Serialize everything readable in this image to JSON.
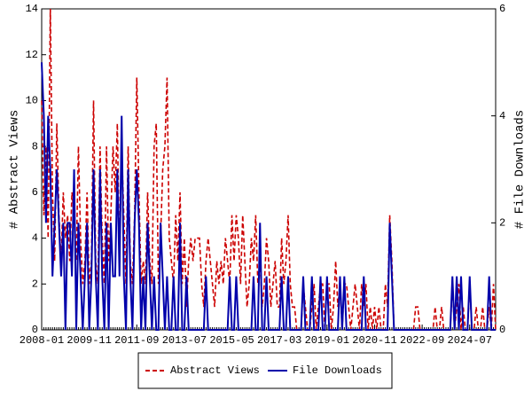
{
  "chart_data": {
    "type": "line",
    "x": [
      "2008-01",
      "2008-02",
      "2008-03",
      "2008-04",
      "2008-05",
      "2008-06",
      "2008-07",
      "2008-08",
      "2008-09",
      "2008-10",
      "2008-11",
      "2008-12",
      "2009-01",
      "2009-02",
      "2009-03",
      "2009-04",
      "2009-05",
      "2009-06",
      "2009-07",
      "2009-08",
      "2009-09",
      "2009-10",
      "2009-11",
      "2009-12",
      "2010-01",
      "2010-02",
      "2010-03",
      "2010-04",
      "2010-05",
      "2010-06",
      "2010-07",
      "2010-08",
      "2010-09",
      "2010-10",
      "2010-11",
      "2010-12",
      "2011-01",
      "2011-02",
      "2011-03",
      "2011-04",
      "2011-05",
      "2011-06",
      "2011-07",
      "2011-08",
      "2011-09",
      "2011-10",
      "2011-11",
      "2011-12",
      "2012-01",
      "2012-02",
      "2012-03",
      "2012-04",
      "2012-05",
      "2012-06",
      "2012-07",
      "2012-08",
      "2012-09",
      "2012-10",
      "2012-11",
      "2012-12",
      "2013-01",
      "2013-02",
      "2013-03",
      "2013-04",
      "2013-05",
      "2013-06",
      "2013-07",
      "2013-08",
      "2013-09",
      "2013-10",
      "2013-11",
      "2013-12",
      "2014-01",
      "2014-02",
      "2014-03",
      "2014-04",
      "2014-05",
      "2014-06",
      "2014-07",
      "2014-08",
      "2014-09",
      "2014-10",
      "2014-11",
      "2014-12",
      "2015-01",
      "2015-02",
      "2015-03",
      "2015-04",
      "2015-05",
      "2015-06",
      "2015-07",
      "2015-08",
      "2015-09",
      "2015-10",
      "2015-11",
      "2015-12",
      "2016-01",
      "2016-02",
      "2016-03",
      "2016-04",
      "2016-05",
      "2016-06",
      "2016-07",
      "2016-08",
      "2016-09",
      "2016-10",
      "2016-11",
      "2016-12",
      "2017-01",
      "2017-02",
      "2017-03",
      "2017-04",
      "2017-05",
      "2017-06",
      "2017-07",
      "2017-08",
      "2017-09",
      "2017-10",
      "2017-11",
      "2017-12",
      "2018-01",
      "2018-02",
      "2018-03",
      "2018-04",
      "2018-05",
      "2018-06",
      "2018-07",
      "2018-08",
      "2018-09",
      "2018-10",
      "2018-11",
      "2018-12",
      "2019-01",
      "2019-02",
      "2019-03",
      "2019-04",
      "2019-05",
      "2019-06",
      "2019-07",
      "2019-08",
      "2019-09",
      "2019-10",
      "2019-11",
      "2019-12",
      "2020-01",
      "2020-02",
      "2020-03",
      "2020-04",
      "2020-05",
      "2020-06",
      "2020-07",
      "2020-08",
      "2020-09",
      "2020-10",
      "2020-11",
      "2020-12",
      "2021-01",
      "2021-02",
      "2021-03",
      "2021-04",
      "2021-05",
      "2021-06",
      "2021-07",
      "2021-08",
      "2021-09",
      "2021-10",
      "2021-11",
      "2021-12",
      "2022-01",
      "2022-02",
      "2022-03",
      "2022-04",
      "2022-05",
      "2022-06",
      "2022-07",
      "2022-08",
      "2022-09",
      "2022-10",
      "2022-11",
      "2022-12",
      "2023-01",
      "2023-02",
      "2023-03",
      "2023-04",
      "2023-05",
      "2023-06",
      "2023-07",
      "2023-08",
      "2023-09",
      "2023-10",
      "2023-11",
      "2023-12",
      "2024-01",
      "2024-02",
      "2024-03",
      "2024-04",
      "2024-05",
      "2024-06",
      "2024-07",
      "2024-08",
      "2024-09",
      "2024-10",
      "2024-11",
      "2024-12",
      "2025-01",
      "2025-02",
      "2025-03",
      "2025-04",
      "2025-05",
      "2025-06",
      "2025-07"
    ],
    "xticks": [
      "2008-01",
      "2009-11",
      "2011-09",
      "2013-07",
      "2015-05",
      "2017-03",
      "2019-01",
      "2020-11",
      "2022-09",
      "2024-07"
    ],
    "ylabel": "# Abstract Views",
    "y2label": "# File Downloads",
    "ylim": [
      0,
      14
    ],
    "yticks": [
      0,
      2,
      4,
      6,
      8,
      10,
      12,
      14
    ],
    "y2lim": [
      0,
      6
    ],
    "y2ticks": [
      0,
      2,
      4,
      6
    ],
    "legend": "bottom",
    "series": [
      {
        "name": "Abstract Views",
        "color": "#cc0000",
        "dash": true,
        "values": [
          10,
          5,
          8,
          4,
          14,
          6,
          3,
          9,
          5,
          3,
          6,
          4,
          5,
          3,
          6,
          5,
          3,
          8,
          4,
          2,
          3,
          6,
          2,
          3,
          10,
          3,
          2,
          8,
          4,
          2,
          8,
          3,
          5,
          8,
          6,
          9,
          3,
          8,
          5,
          2,
          8,
          3,
          2,
          5,
          11,
          6,
          2,
          3,
          2,
          6,
          3,
          2,
          8,
          9,
          2,
          4,
          7,
          8,
          11,
          4,
          3,
          2,
          5,
          3,
          6,
          2,
          4,
          1,
          3,
          4,
          3,
          4,
          4,
          4,
          2,
          1,
          3,
          4,
          3,
          2,
          1,
          3,
          2,
          3,
          2,
          4,
          3,
          2,
          5,
          3,
          5,
          4,
          2,
          5,
          3,
          1,
          2,
          4,
          3,
          5,
          2,
          3,
          1,
          2,
          4,
          3,
          1,
          2,
          3,
          1,
          1,
          4,
          2,
          3,
          5,
          2,
          1,
          1,
          0,
          0,
          0,
          2,
          1,
          0,
          0,
          1,
          2,
          0,
          1,
          2,
          2,
          0,
          2,
          2,
          0,
          1,
          3,
          1,
          2,
          0,
          2,
          2,
          1,
          0,
          1,
          2,
          1,
          0,
          2,
          1,
          2,
          0,
          1,
          0,
          1,
          0,
          1,
          0,
          0,
          2,
          1,
          5,
          3,
          0,
          0,
          0,
          0,
          0,
          0,
          0,
          0,
          0,
          0,
          1,
          1,
          0,
          0,
          0,
          0,
          0,
          0,
          0,
          1,
          0,
          0,
          1,
          0,
          0,
          0,
          0,
          2,
          0,
          1,
          2,
          0,
          1,
          0,
          0,
          2,
          0,
          0,
          1,
          0,
          0,
          1,
          0,
          0,
          1,
          0,
          2,
          0
        ]
      },
      {
        "name": "File Downloads",
        "color": "#0000aa",
        "axis": "y2",
        "values": [
          5,
          4,
          2,
          4,
          3,
          1,
          2,
          3,
          2,
          1,
          2,
          0,
          2,
          2,
          1,
          3,
          0,
          2,
          1,
          0,
          1,
          2,
          0,
          1,
          3,
          1,
          0,
          3,
          1,
          0,
          2,
          0,
          2,
          1,
          1,
          3,
          1,
          4,
          1,
          0,
          3,
          1,
          0,
          2,
          3,
          2,
          0,
          1,
          0,
          2,
          1,
          0,
          1,
          0,
          0,
          2,
          1,
          0,
          1,
          0,
          0,
          1,
          0,
          0,
          2,
          0,
          0,
          1,
          0,
          0,
          0,
          0,
          0,
          0,
          0,
          0,
          1,
          0,
          0,
          0,
          0,
          0,
          0,
          0,
          0,
          0,
          0,
          1,
          0,
          0,
          1,
          0,
          0,
          0,
          0,
          0,
          0,
          0,
          1,
          0,
          0,
          2,
          0,
          0,
          1,
          0,
          0,
          0,
          0,
          0,
          0,
          1,
          0,
          0,
          1,
          0,
          0,
          0,
          0,
          0,
          0,
          1,
          0,
          0,
          0,
          1,
          0,
          0,
          0,
          1,
          0,
          0,
          1,
          0,
          0,
          0,
          0,
          0,
          1,
          0,
          1,
          0,
          0,
          0,
          0,
          0,
          0,
          0,
          0,
          1,
          0,
          0,
          0,
          0,
          0,
          0,
          0,
          0,
          0,
          0,
          0,
          2,
          1,
          0,
          0,
          0,
          0,
          0,
          0,
          0,
          0,
          0,
          0,
          0,
          0,
          0,
          0,
          0,
          0,
          0,
          0,
          0,
          0,
          0,
          0,
          0,
          0,
          0,
          0,
          0,
          1,
          0,
          1,
          0,
          1,
          0,
          0,
          0,
          1,
          0,
          0,
          0,
          0,
          0,
          0,
          0,
          0,
          1,
          0,
          0,
          0
        ]
      }
    ]
  }
}
